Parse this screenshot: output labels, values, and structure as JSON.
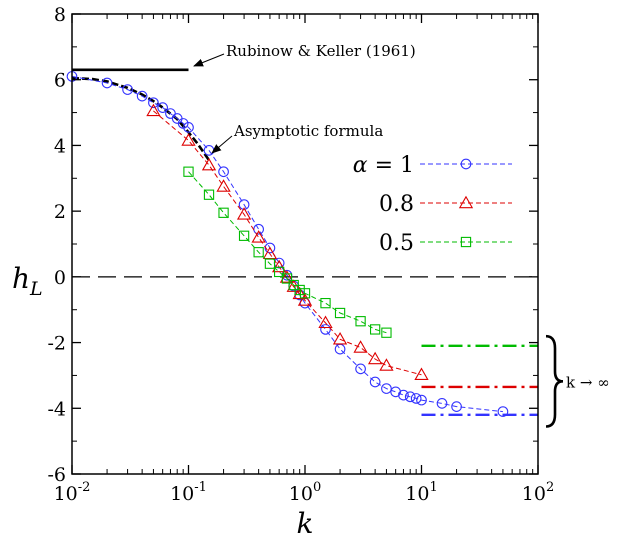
{
  "chart_data": {
    "type": "line",
    "xscale": "log",
    "xlim": [
      0.01,
      100
    ],
    "ylim": [
      -6,
      8
    ],
    "xlabel": "k",
    "ylabel": "h_L",
    "x_ticks": [
      {
        "value": 0.01,
        "base": "10",
        "exp": "-2"
      },
      {
        "value": 0.1,
        "base": "10",
        "exp": "-1"
      },
      {
        "value": 1,
        "base": "10",
        "exp": "0"
      },
      {
        "value": 10,
        "base": "10",
        "exp": "1"
      },
      {
        "value": 100,
        "base": "10",
        "exp": "2"
      }
    ],
    "y_ticks": [
      {
        "value": -6,
        "label": "-6"
      },
      {
        "value": -4,
        "label": "-4"
      },
      {
        "value": -2,
        "label": "-2"
      },
      {
        "value": 0,
        "label": "0"
      },
      {
        "value": 2,
        "label": "2"
      },
      {
        "value": 4,
        "label": "4"
      },
      {
        "value": 6,
        "label": "6"
      },
      {
        "value": 8,
        "label": "8"
      }
    ],
    "legend_prefix": "α = ",
    "series": [
      {
        "name": "1",
        "color": "#3333ff",
        "marker": "circle",
        "x": [
          0.01,
          0.02,
          0.03,
          0.04,
          0.05,
          0.06,
          0.07,
          0.08,
          0.09,
          0.1,
          0.15,
          0.2,
          0.3,
          0.4,
          0.5,
          0.6,
          0.7,
          0.8,
          0.9,
          1,
          1.5,
          2,
          3,
          4,
          5,
          6,
          7,
          8,
          9,
          10,
          15,
          20,
          50
        ],
        "y": [
          6.1,
          5.9,
          5.7,
          5.5,
          5.3,
          5.15,
          4.97,
          4.82,
          4.67,
          4.55,
          3.85,
          3.2,
          2.2,
          1.45,
          0.88,
          0.42,
          0.05,
          -0.28,
          -0.55,
          -0.8,
          -1.6,
          -2.2,
          -2.8,
          -3.2,
          -3.4,
          -3.5,
          -3.6,
          -3.65,
          -3.7,
          -3.75,
          -3.85,
          -3.95,
          -4.1
        ]
      },
      {
        "name": "0.8",
        "color": "#dd0000",
        "marker": "triangle",
        "x": [
          0.05,
          0.1,
          0.15,
          0.2,
          0.3,
          0.4,
          0.5,
          0.6,
          0.7,
          0.8,
          0.9,
          1,
          1.5,
          2,
          3,
          4,
          5,
          10
        ],
        "y": [
          5.05,
          4.15,
          3.4,
          2.75,
          1.9,
          1.2,
          0.7,
          0.3,
          -0.02,
          -0.3,
          -0.52,
          -0.72,
          -1.4,
          -1.9,
          -2.15,
          -2.5,
          -2.7,
          -2.98
        ]
      },
      {
        "name": "0.5",
        "color": "#00bb00",
        "marker": "square",
        "x": [
          0.1,
          0.15,
          0.2,
          0.3,
          0.4,
          0.5,
          0.6,
          0.7,
          0.8,
          0.9,
          1,
          1.5,
          2,
          3,
          4,
          5
        ],
        "y": [
          3.2,
          2.5,
          1.95,
          1.25,
          0.75,
          0.4,
          0.15,
          -0.05,
          -0.25,
          -0.4,
          -0.5,
          -0.8,
          -1.1,
          -1.35,
          -1.6,
          -1.7
        ]
      }
    ],
    "reference_lines": [
      {
        "name": "Rubinow & Keller (1961)",
        "y": 6.3,
        "x_from": 0.01,
        "x_to": 0.1,
        "style": "solid",
        "color": "#000000"
      },
      {
        "name": "Asymptotic formula",
        "x": [
          0.01,
          0.015,
          0.02,
          0.03,
          0.04,
          0.05,
          0.06,
          0.08,
          0.1,
          0.12,
          0.15
        ],
        "y": [
          6.05,
          6.02,
          5.95,
          5.75,
          5.55,
          5.35,
          5.15,
          4.8,
          4.4,
          4.05,
          3.55
        ],
        "style": "dashed",
        "color": "#000000"
      },
      {
        "series": "0.5",
        "y": -2.1,
        "x_from": 10,
        "x_to": 100,
        "style": "dashdot",
        "color": "#00bb00"
      },
      {
        "series": "0.8",
        "y": -3.35,
        "x_from": 10,
        "x_to": 100,
        "style": "dashdot",
        "color": "#dd0000"
      },
      {
        "series": "1",
        "y": -4.2,
        "x_from": 10,
        "x_to": 100,
        "style": "dashdot",
        "color": "#3333ff"
      }
    ],
    "zero_line": {
      "y": 0,
      "style": "longdash"
    },
    "annotations": {
      "rubinow_label": "Rubinow & Keller (1961)",
      "asymptotic_label": "Asymptotic formula",
      "k_limit": "k → ∞"
    }
  }
}
